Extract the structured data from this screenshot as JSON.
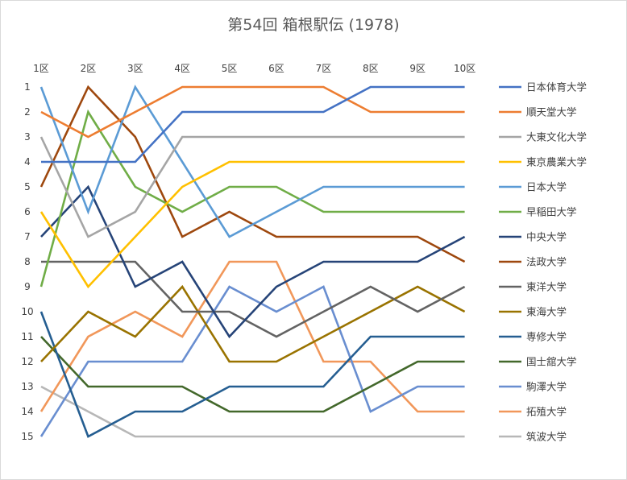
{
  "chart_data": {
    "type": "line",
    "title": "第54回 箱根駅伝 (1978)",
    "xlabel": "",
    "ylabel": "",
    "categories": [
      "1区",
      "2区",
      "3区",
      "4区",
      "5区",
      "6区",
      "7区",
      "8区",
      "9区",
      "10区"
    ],
    "y_ticks": [
      "1",
      "2",
      "3",
      "4",
      "5",
      "6",
      "7",
      "8",
      "9",
      "10",
      "11",
      "12",
      "13",
      "14",
      "15"
    ],
    "ylim": [
      1,
      15
    ],
    "y_reversed": true,
    "grid": false,
    "legend_position": "right",
    "series": [
      {
        "name": "日本体育大学",
        "color": "#4472C4",
        "values": [
          4,
          4,
          4,
          2,
          2,
          2,
          2,
          1,
          1,
          1
        ]
      },
      {
        "name": "順天堂大学",
        "color": "#ED7D31",
        "values": [
          2,
          3,
          2,
          1,
          1,
          1,
          1,
          2,
          2,
          2
        ]
      },
      {
        "name": "大東文化大学",
        "color": "#A5A5A5",
        "values": [
          3,
          7,
          6,
          3,
          3,
          3,
          3,
          3,
          3,
          3
        ]
      },
      {
        "name": "東京農業大学",
        "color": "#FFC000",
        "values": [
          6,
          9,
          7,
          5,
          4,
          4,
          4,
          4,
          4,
          4
        ]
      },
      {
        "name": "日本大学",
        "color": "#5B9BD5",
        "values": [
          1,
          6,
          1,
          4,
          7,
          6,
          5,
          5,
          5,
          5
        ]
      },
      {
        "name": "早稲田大学",
        "color": "#70AD47",
        "values": [
          9,
          2,
          5,
          6,
          5,
          5,
          6,
          6,
          6,
          6
        ]
      },
      {
        "name": "中央大学",
        "color": "#264478",
        "values": [
          7,
          5,
          9,
          8,
          11,
          9,
          8,
          8,
          8,
          7
        ]
      },
      {
        "name": "法政大学",
        "color": "#9E480E",
        "values": [
          5,
          1,
          3,
          7,
          6,
          7,
          7,
          7,
          7,
          8
        ]
      },
      {
        "name": "東洋大学",
        "color": "#636363",
        "values": [
          8,
          8,
          8,
          10,
          10,
          11,
          10,
          9,
          10,
          9
        ]
      },
      {
        "name": "東海大学",
        "color": "#997300",
        "values": [
          12,
          10,
          11,
          9,
          12,
          12,
          11,
          10,
          9,
          10
        ]
      },
      {
        "name": "専修大学",
        "color": "#255E91",
        "values": [
          10,
          15,
          14,
          14,
          13,
          13,
          13,
          11,
          11,
          11
        ]
      },
      {
        "name": "国士舘大学",
        "color": "#43682B",
        "values": [
          11,
          13,
          13,
          13,
          14,
          14,
          14,
          13,
          12,
          12
        ]
      },
      {
        "name": "駒澤大学",
        "color": "#698ED0",
        "values": [
          15,
          12,
          12,
          12,
          9,
          10,
          9,
          14,
          13,
          13
        ]
      },
      {
        "name": "拓殖大学",
        "color": "#F1975A",
        "values": [
          14,
          11,
          10,
          11,
          8,
          8,
          12,
          12,
          14,
          14
        ]
      },
      {
        "name": "筑波大学",
        "color": "#B7B7B7",
        "values": [
          13,
          14,
          15,
          15,
          15,
          15,
          15,
          15,
          15,
          15
        ]
      }
    ]
  }
}
